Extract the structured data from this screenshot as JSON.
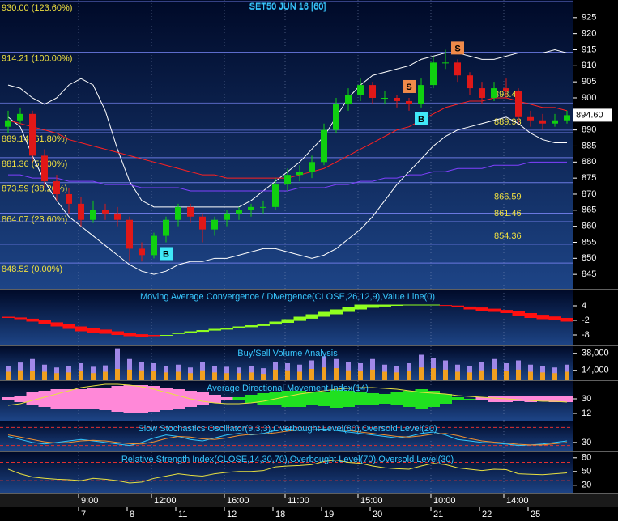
{
  "chart_data": [
    {
      "type": "candlestick",
      "title": "SET50 JUN 16  [60]",
      "categories": [
        null,
        null,
        null,
        null,
        null,
        null,
        "9:00",
        null,
        null,
        null,
        null,
        null,
        "12:00",
        null,
        null,
        null,
        null,
        null,
        "16:00",
        null,
        null,
        null,
        null,
        "11:00",
        null,
        null,
        null,
        null,
        null,
        "15:00",
        null,
        null,
        null,
        null,
        null,
        "10:00",
        null,
        null,
        null,
        null,
        null,
        "14:00",
        null,
        null,
        null,
        null,
        null
      ],
      "days": [
        null,
        null,
        null,
        null,
        null,
        null,
        "7",
        null,
        null,
        null,
        "8",
        null,
        null,
        null,
        "11",
        null,
        null,
        null,
        "12",
        null,
        null,
        null,
        "18",
        null,
        null,
        null,
        "19",
        null,
        null,
        null,
        "20",
        null,
        null,
        null,
        null,
        "21",
        null,
        null,
        null,
        "22",
        null,
        null,
        null,
        "25",
        null,
        null,
        null
      ],
      "candles": [
        [
          891,
          896,
          889,
          893
        ],
        [
          893,
          897,
          892,
          895
        ],
        [
          895,
          896,
          880,
          882
        ],
        [
          882,
          884,
          872,
          874
        ],
        [
          874,
          876,
          868,
          870
        ],
        [
          870,
          872,
          864,
          867
        ],
        [
          867,
          869,
          860,
          862
        ],
        [
          862,
          868,
          861,
          865
        ],
        [
          865,
          867,
          862,
          864
        ],
        [
          864,
          866,
          860,
          862
        ],
        [
          862,
          863,
          849,
          853
        ],
        [
          853,
          855,
          849,
          851
        ],
        [
          851,
          858,
          850,
          857
        ],
        [
          857,
          863,
          855,
          862
        ],
        [
          862,
          867,
          860,
          866
        ],
        [
          866,
          867,
          861,
          863
        ],
        [
          863,
          864,
          855,
          859
        ],
        [
          859,
          863,
          857,
          862
        ],
        [
          862,
          865,
          860,
          864
        ],
        [
          864,
          866,
          862,
          865
        ],
        [
          865,
          867,
          863,
          866
        ],
        [
          866,
          868,
          864,
          866
        ],
        [
          866,
          875,
          865,
          873
        ],
        [
          873,
          878,
          871,
          876
        ],
        [
          876,
          879,
          874,
          877
        ],
        [
          877,
          882,
          875,
          880
        ],
        [
          880,
          892,
          879,
          890
        ],
        [
          890,
          900,
          889,
          898
        ],
        [
          898,
          903,
          896,
          901
        ],
        [
          901,
          906,
          899,
          904
        ],
        [
          904,
          905,
          898,
          900
        ],
        [
          900,
          902,
          898,
          900
        ],
        [
          900,
          901,
          897,
          899
        ],
        [
          899,
          900,
          896,
          898
        ],
        [
          898,
          906,
          897,
          904
        ],
        [
          904,
          913,
          903,
          911
        ],
        [
          911,
          915,
          909,
          911
        ],
        [
          911,
          912,
          905,
          907
        ],
        [
          907,
          908,
          901,
          903
        ],
        [
          903,
          905,
          898,
          900
        ],
        [
          900,
          905,
          899,
          903
        ],
        [
          903,
          906,
          900,
          902
        ],
        [
          902,
          903,
          892,
          894
        ],
        [
          894,
          896,
          891,
          893
        ],
        [
          893,
          895,
          890,
          892
        ],
        [
          892,
          895,
          891,
          893
        ],
        [
          893,
          896,
          892,
          894.6
        ]
      ],
      "up_color": "#10d010",
      "down_color": "#e01818",
      "lines": [
        {
          "color": "#ffffff",
          "values": [
            904,
            903,
            900,
            898,
            900,
            904,
            906,
            904,
            896,
            884,
            874,
            868,
            866,
            866,
            866,
            866,
            866,
            866,
            866,
            866,
            868,
            871,
            874,
            877,
            880,
            884,
            888,
            894,
            900,
            904,
            907,
            908,
            909,
            910,
            912,
            913,
            914,
            914,
            913,
            912,
            912,
            913,
            914,
            914,
            914,
            915,
            914
          ]
        },
        {
          "color": "#ffffff",
          "values": [
            894,
            891,
            882,
            874,
            868,
            863,
            860,
            857,
            854,
            851,
            848,
            846,
            845,
            846,
            848,
            849,
            849,
            850,
            850,
            851,
            852,
            853,
            853,
            852,
            851,
            850,
            851,
            853,
            856,
            859,
            863,
            868,
            873,
            877,
            881,
            885,
            888,
            890,
            891,
            892,
            893,
            894,
            892,
            889,
            887,
            886,
            886
          ]
        },
        {
          "color": "#ff2020",
          "values": [
            893,
            892,
            891,
            890,
            889,
            887,
            886,
            885,
            884,
            883,
            882,
            881,
            880,
            879,
            878,
            877,
            876,
            876,
            875,
            875,
            875,
            875,
            875,
            875,
            876,
            877,
            878,
            880,
            882,
            884,
            886,
            888,
            890,
            891,
            893,
            895,
            897,
            898,
            899,
            899,
            900,
            900,
            899,
            898,
            897,
            897,
            896
          ]
        },
        {
          "color": "#8040ff",
          "values": [
            876,
            876,
            875,
            875,
            875,
            874,
            874,
            874,
            873,
            873,
            873,
            872,
            872,
            872,
            872,
            871,
            871,
            871,
            871,
            871,
            871,
            871,
            871,
            871,
            872,
            872,
            872,
            873,
            873,
            874,
            874,
            875,
            875,
            876,
            876,
            877,
            877,
            878,
            878,
            878,
            879,
            879,
            879,
            880,
            880,
            880,
            880
          ]
        }
      ],
      "fib_color": "#6a78e0",
      "fib_label_color": "#f0e040",
      "fib_levels": [
        {
          "value": 930,
          "label": "930.00 (123.60%)"
        },
        {
          "value": 914.21,
          "label": "914.21 (100.00%)"
        },
        {
          "value": 889.14,
          "label": "889.14 (61.80%)"
        },
        {
          "value": 881.36,
          "label": "881.36 (50.00%)"
        },
        {
          "value": 873.59,
          "label": "873.59 (38.20%)"
        },
        {
          "value": 864.07,
          "label": "864.07 (23.60%)"
        },
        {
          "value": 848.52,
          "label": "848.52 (0.00%)"
        }
      ],
      "levels": [
        {
          "value": 898.4,
          "label": "898.40"
        },
        889.93,
        866.59,
        861.46,
        854.36
      ],
      "last_price_label": "894.60",
      "signals": [
        {
          "label": "B",
          "index": 13,
          "position": "below",
          "color": "#40e8f8"
        },
        {
          "label": "S",
          "index": 33,
          "position": "above",
          "color": "#f08a4a"
        },
        {
          "label": "B",
          "index": 34,
          "position": "below",
          "color": "#40e8f8"
        },
        {
          "label": "S",
          "index": 37,
          "position": "above",
          "color": "#f08a4a"
        }
      ],
      "ylim": [
        840.5,
        930.5
      ],
      "yticks": [
        845,
        850,
        855,
        860,
        865,
        870,
        875,
        880,
        885,
        890,
        895,
        900,
        905,
        910,
        915,
        920,
        925
      ]
    },
    {
      "type": "macd",
      "title": "Moving Average Convergence / Divergence(CLOSE,26,12,9),Value Line(0)",
      "macd": [
        -1,
        -1.5,
        -2.5,
        -3.5,
        -4.5,
        -5.5,
        -6.5,
        -7,
        -7.5,
        -8,
        -8.5,
        -9,
        -8.5,
        -8,
        -7,
        -6.5,
        -6,
        -5.5,
        -5,
        -4.5,
        -4,
        -3.5,
        -2.5,
        -1.5,
        -0.5,
        0.5,
        1.5,
        2.5,
        3.5,
        4.5,
        4.5,
        4.5,
        4.5,
        4.5,
        4.5,
        4.5,
        4,
        3.5,
        2.5,
        2,
        1.5,
        1,
        0,
        -1,
        -1.5,
        -2,
        -2.5
      ],
      "signal": [
        -0.5,
        -0.8,
        -1.3,
        -2,
        -2.8,
        -3.6,
        -4.5,
        -5.2,
        -5.8,
        -6.5,
        -7.1,
        -7.7,
        -8,
        -8,
        -7.6,
        -7.2,
        -6.7,
        -6.2,
        -5.8,
        -5.3,
        -4.8,
        -4.3,
        -3.7,
        -3,
        -2.2,
        -1.3,
        -0.5,
        0.5,
        1.5,
        2.5,
        3.2,
        3.7,
        4,
        4.2,
        4.3,
        4.4,
        4.3,
        4.1,
        3.7,
        3.3,
        2.8,
        2.3,
        1.7,
        1,
        0.3,
        -0.4,
        -1
      ],
      "up_color": "#90ff20",
      "down_color": "#ff1010",
      "ylim": [
        -12.33,
        10.67
      ],
      "yticks": [
        4,
        -2,
        -8
      ]
    },
    {
      "type": "volume",
      "title": "Buy/Sell Volume Analysis",
      "values": [
        20000,
        25000,
        30000,
        22000,
        18000,
        20000,
        24000,
        19000,
        21000,
        45000,
        30000,
        26000,
        24000,
        20000,
        22000,
        18000,
        26000,
        20000,
        19000,
        18000,
        20000,
        17000,
        26000,
        24000,
        22000,
        28000,
        34000,
        30000,
        26000,
        24000,
        30000,
        22000,
        20000,
        24000,
        36000,
        32000,
        28000,
        22000,
        20000,
        26000,
        30000,
        24000,
        28000,
        22000,
        20000,
        18000,
        22000
      ],
      "buy": [
        12000,
        14000,
        13000,
        12000,
        10000,
        11000,
        13000,
        10000,
        12000,
        16000,
        15000,
        14000,
        13000,
        11000,
        12000,
        10000,
        14000,
        11000,
        10000,
        10000,
        11000,
        9000,
        15000,
        14000,
        12000,
        16000,
        18000,
        17000,
        14000,
        13000,
        15000,
        12000,
        11000,
        13000,
        18000,
        17000,
        15000,
        12000,
        11000,
        14000,
        16000,
        13000,
        15000,
        12000,
        11000,
        10000,
        12000
      ],
      "color": "#a088e8",
      "buy_color": "#f0a020",
      "ylim": [
        0,
        48000
      ],
      "yticks": [
        {
          "value": 38000,
          "label": "38,000"
        },
        {
          "value": 14000,
          "label": "14,000"
        }
      ]
    },
    {
      "type": "adx",
      "title": "Average Directional Movement Index(14)",
      "plus_di": [
        28,
        26,
        22,
        20,
        18,
        18,
        18,
        17,
        16,
        14,
        13,
        13,
        14,
        16,
        18,
        20,
        22,
        25,
        28,
        32,
        35,
        37,
        38,
        40,
        40,
        38,
        39,
        41,
        40,
        38,
        37,
        36,
        38,
        40,
        42,
        40,
        36,
        32,
        30,
        28,
        26,
        26,
        27,
        26,
        27,
        26,
        26
      ],
      "minus_di": [
        32,
        34,
        38,
        40,
        42,
        42,
        42,
        43,
        44,
        46,
        47,
        47,
        46,
        44,
        42,
        40,
        38,
        35,
        32,
        28,
        25,
        23,
        22,
        20,
        20,
        22,
        21,
        19,
        20,
        22,
        23,
        24,
        22,
        20,
        18,
        20,
        24,
        28,
        30,
        32,
        34,
        34,
        33,
        34,
        33,
        34,
        34
      ],
      "adx": [
        22,
        24,
        28,
        32,
        36,
        40,
        44,
        46,
        48,
        48,
        47,
        45,
        42,
        38,
        34,
        30,
        27,
        25,
        24,
        24,
        25,
        27,
        30,
        33,
        36,
        38,
        40,
        42,
        43,
        44,
        44,
        43,
        42,
        40,
        38,
        37,
        36,
        34,
        33,
        32,
        31,
        30,
        29,
        28,
        27,
        27,
        26
      ],
      "plus_color": "#20e020",
      "minus_color": "#ff88d8",
      "adx_color": "#e8e040",
      "ylim": [
        3,
        52
      ],
      "yticks": [
        30,
        12
      ]
    },
    {
      "type": "line",
      "title": "Slow Stochastics Oscillator(9,3,3),Overbought Level(80),Oversold Level(20)",
      "series": [
        {
          "color": "#30c8ff",
          "values": [
            50,
            40,
            30,
            25,
            30,
            35,
            40,
            35,
            30,
            25,
            20,
            30,
            45,
            55,
            50,
            40,
            35,
            45,
            55,
            60,
            55,
            60,
            70,
            75,
            70,
            72,
            75,
            70,
            65,
            60,
            55,
            50,
            45,
            50,
            60,
            65,
            55,
            40,
            35,
            30,
            28,
            25,
            20,
            22,
            25,
            30,
            35
          ]
        },
        {
          "color": "#f09030",
          "values": [
            55,
            48,
            40,
            32,
            28,
            30,
            35,
            37,
            35,
            30,
            26,
            25,
            32,
            43,
            50,
            48,
            42,
            40,
            45,
            53,
            57,
            58,
            62,
            68,
            72,
            72,
            72,
            72,
            70,
            65,
            60,
            55,
            50,
            48,
            52,
            58,
            60,
            53,
            43,
            35,
            31,
            28,
            24,
            22,
            22,
            26,
            30
          ]
        }
      ],
      "levels": [
        80,
        20
      ],
      "level_color": "#e03030",
      "ylim": [
        0,
        100
      ],
      "yticks": [
        30
      ]
    },
    {
      "type": "line",
      "title": "Relative Strength Index(CLOSE,14,30,70),Overbought Level(70),Oversold Level(30)",
      "series": [
        {
          "color": "#e8e040",
          "values": [
            55,
            45,
            38,
            35,
            33,
            32,
            30,
            35,
            33,
            30,
            25,
            27,
            35,
            40,
            45,
            42,
            40,
            45,
            48,
            50,
            50,
            52,
            60,
            62,
            63,
            65,
            72,
            75,
            70,
            68,
            62,
            58,
            56,
            55,
            62,
            68,
            65,
            58,
            55,
            52,
            55,
            54,
            45,
            44,
            43,
            45,
            47
          ]
        }
      ],
      "levels": [
        70,
        30
      ],
      "level_color": "#e03030",
      "ylim": [
        2,
        92
      ],
      "yticks": [
        80,
        50,
        20
      ]
    }
  ]
}
